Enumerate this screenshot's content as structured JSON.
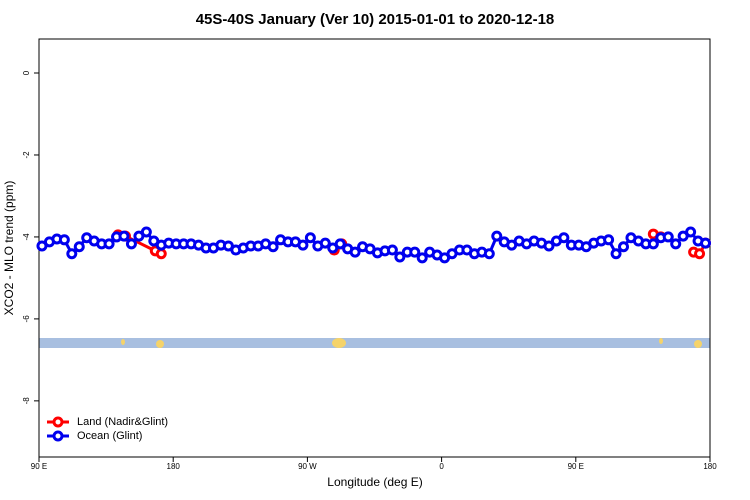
{
  "chart_data": {
    "type": "line",
    "title": "45S-40S January (Ver 10)   2015-01-01 to 2020-12-18",
    "x_label": "Longitude (deg E)",
    "y_label": "XCO2 - MLO trend (ppm)",
    "xlim": [
      90,
      540
    ],
    "ylim": [
      -9.37,
      0.83
    ],
    "xticks": [
      {
        "value": 90,
        "label": "90 E"
      },
      180,
      {
        "value": 270,
        "label": "90 W"
      },
      {
        "value": 360,
        "label": "0"
      },
      {
        "value": 450,
        "label": "90 E"
      },
      {
        "value": 540,
        "label": "180"
      }
    ],
    "yticks": [
      0,
      -2,
      -4,
      -6,
      -8
    ],
    "legend": "bottom-left",
    "series": [
      {
        "name": "Land (Nadir&Glint)",
        "color": "#ff0000",
        "x": [
          143,
          148,
          168,
          172,
          180,
          288,
          293,
          400,
          502,
          507,
          515,
          529,
          533,
          537
        ],
        "values": [
          -3.95,
          -3.98,
          -4.34,
          -4.41,
          null,
          -4.32,
          -4.17,
          null,
          -3.93,
          -4.0,
          null,
          -4.37,
          -4.41,
          -4.15
        ]
      },
      {
        "name": "Ocean (Glint)",
        "color": "#0000ee",
        "x": [
          92,
          97,
          102,
          107,
          112,
          117,
          122,
          127,
          132,
          137,
          142,
          147,
          152,
          157,
          162,
          167,
          172,
          177,
          182,
          187,
          192,
          197,
          202,
          207,
          212,
          217,
          222,
          227,
          232,
          237,
          242,
          247,
          252,
          257,
          262,
          267,
          272,
          277,
          282,
          287,
          292,
          297,
          302,
          307,
          312,
          317,
          322,
          327,
          332,
          337,
          342,
          347,
          352,
          357,
          362,
          367,
          372,
          377,
          382,
          387,
          392,
          397,
          402,
          407,
          412,
          417,
          422,
          427,
          432,
          437,
          442,
          447,
          452,
          457,
          462,
          467,
          472,
          477,
          482,
          487,
          492,
          497,
          502,
          507,
          512,
          517,
          522,
          527,
          532,
          537
        ],
        "values": [
          -4.22,
          -4.12,
          -4.05,
          -4.07,
          -4.41,
          -4.24,
          -4.02,
          -4.1,
          -4.17,
          -4.17,
          -4.0,
          -3.98,
          -4.17,
          -3.98,
          -3.88,
          -4.1,
          -4.2,
          -4.15,
          -4.17,
          -4.17,
          -4.17,
          -4.2,
          -4.27,
          -4.27,
          -4.2,
          -4.22,
          -4.32,
          -4.27,
          -4.22,
          -4.22,
          -4.17,
          -4.24,
          -4.07,
          -4.12,
          -4.12,
          -4.2,
          -4.02,
          -4.22,
          -4.15,
          -4.27,
          -4.17,
          -4.29,
          -4.37,
          -4.24,
          -4.29,
          -4.39,
          -4.34,
          -4.32,
          -4.49,
          -4.37,
          -4.37,
          -4.51,
          -4.37,
          -4.44,
          -4.51,
          -4.41,
          -4.32,
          -4.32,
          -4.41,
          -4.37,
          -4.41,
          -3.98,
          -4.12,
          -4.2,
          -4.1,
          -4.17,
          -4.1,
          -4.15,
          -4.22,
          -4.1,
          -4.02,
          -4.2,
          -4.2,
          -4.24,
          -4.15,
          -4.1,
          -4.07,
          -4.41,
          -4.24,
          -4.02,
          -4.1,
          -4.17,
          -4.17,
          -4.02,
          -4.0,
          -4.17,
          -3.98,
          -3.88,
          -4.1,
          -4.15
        ]
      }
    ]
  }
}
